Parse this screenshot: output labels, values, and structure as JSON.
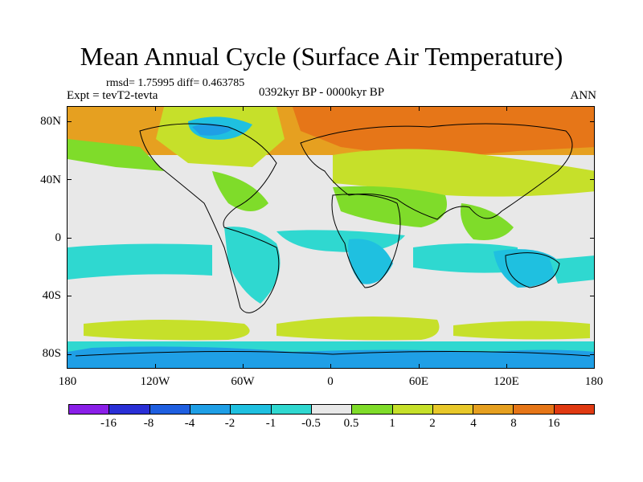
{
  "title": "Mean Annual Cycle (Surface Air Temperature)",
  "stats": "rmsd= 1.75995 diff= 0.463785",
  "experiment": "Expt = tevT2-tevta",
  "period": "0392kyr BP - 0000kyr BP",
  "season": "ANN",
  "y_axis_labels": [
    "80N",
    "40N",
    "0",
    "40S",
    "80S"
  ],
  "x_axis_labels": [
    "180",
    "120W",
    "60W",
    "0",
    "60E",
    "120E",
    "180"
  ],
  "colorbar": {
    "colors": [
      "#8a1fe8",
      "#2a2fd6",
      "#1f5fe0",
      "#1f9fe6",
      "#1fc0e0",
      "#2fd8d0",
      "#e8e8e8",
      "#7fdc2a",
      "#c6e02a",
      "#e8c82a",
      "#e6a020",
      "#e67618",
      "#e03a12"
    ],
    "labels": [
      "-16",
      "-8",
      "-4",
      "-2",
      "-1",
      "-0.5",
      "0.5",
      "1",
      "2",
      "4",
      "8",
      "16"
    ]
  }
}
